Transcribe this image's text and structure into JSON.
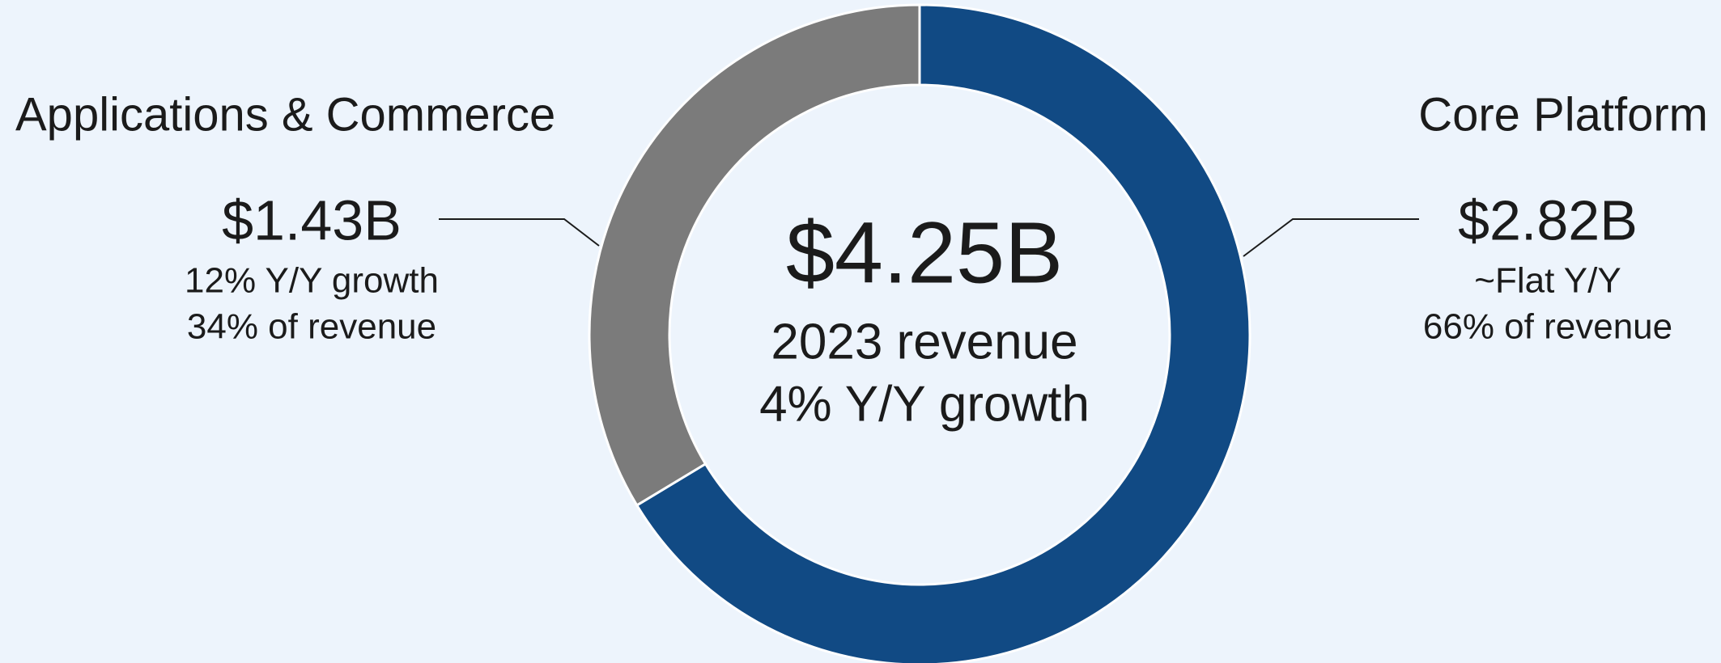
{
  "chart_data": {
    "type": "donut",
    "categories": [
      "Core Platform",
      "Applications & Commerce"
    ],
    "values": [
      2.82,
      1.43
    ],
    "value_labels": [
      "$2.82B",
      "$1.43B"
    ],
    "colors": [
      "#114a84",
      "#7b7b7b"
    ],
    "details": [
      [
        "~Flat Y/Y",
        "66% of revenue"
      ],
      [
        "12% Y/Y growth",
        "34% of revenue"
      ]
    ],
    "center_labels": [
      "$4.25B",
      "2023 revenue",
      "4% Y/Y growth"
    ]
  }
}
